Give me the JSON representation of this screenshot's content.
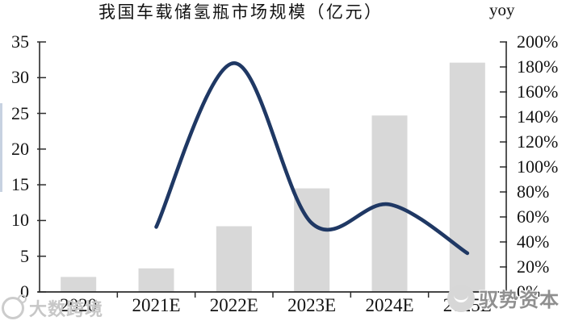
{
  "legend": {
    "market_size_label": "我国车载储氢瓶市场规模（亿元）",
    "yoy_label": "yoy"
  },
  "watermarks": {
    "left_text": "大数跨境",
    "right_text": "驭势资本"
  },
  "colors": {
    "bar": "#d8d8d8",
    "line": "#1f3864",
    "axis": "#2b2b2b",
    "text": "#141414"
  },
  "chart_data": {
    "type": "bar",
    "subtype": "bar+line combo",
    "title": "我国车载储氢瓶市场规模（亿元）",
    "categories": [
      "2020",
      "2021E",
      "2022E",
      "2023E",
      "2024E",
      "2025E"
    ],
    "series": [
      {
        "name": "我国车载储氢瓶市场规模（亿元）",
        "type": "bar",
        "axis": "left",
        "values": [
          2.1,
          3.3,
          9.2,
          14.5,
          24.7,
          32.1
        ]
      },
      {
        "name": "yoy",
        "type": "line",
        "axis": "right",
        "unit": "%",
        "values": [
          null,
          52,
          183,
          55,
          70,
          31
        ]
      }
    ],
    "left_axis": {
      "min": 0,
      "max": 35,
      "step": 5,
      "ticks": [
        "0",
        "5",
        "10",
        "15",
        "20",
        "25",
        "30",
        "35"
      ]
    },
    "right_axis": {
      "min": 0,
      "max": 200,
      "step": 20,
      "ticks": [
        "0%",
        "20%",
        "40%",
        "60%",
        "80%",
        "100%",
        "120%",
        "140%",
        "160%",
        "180%",
        "200%"
      ]
    },
    "grid": false,
    "legend_position": "top"
  }
}
